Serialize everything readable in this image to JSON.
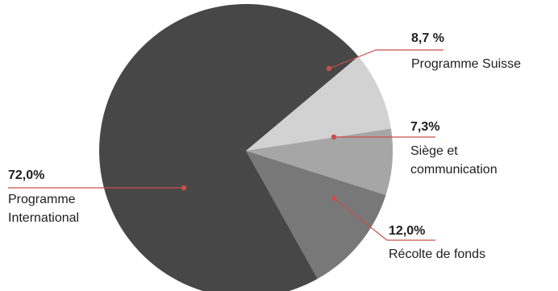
{
  "chart_data": {
    "type": "pie",
    "slices": [
      {
        "percent_label": "8,7 %",
        "name_lines": [
          "Programme Suisse"
        ],
        "value": 8.7,
        "color": "#d2d2d2"
      },
      {
        "percent_label": "7,3%",
        "name_lines": [
          "Siège et",
          "communication"
        ],
        "value": 7.3,
        "color": "#a6a6a7"
      },
      {
        "percent_label": "12,0%",
        "name_lines": [
          "Récolte de fonds"
        ],
        "value": 12.0,
        "color": "#787878"
      },
      {
        "percent_label": "72,0%",
        "name_lines": [
          "Programme",
          "International"
        ],
        "value": 72.0,
        "color": "#474747"
      }
    ],
    "start_angle_deg": -40,
    "direction": "clockwise",
    "leader_color": "#c8504a",
    "label_color": "#1e1e1e"
  }
}
